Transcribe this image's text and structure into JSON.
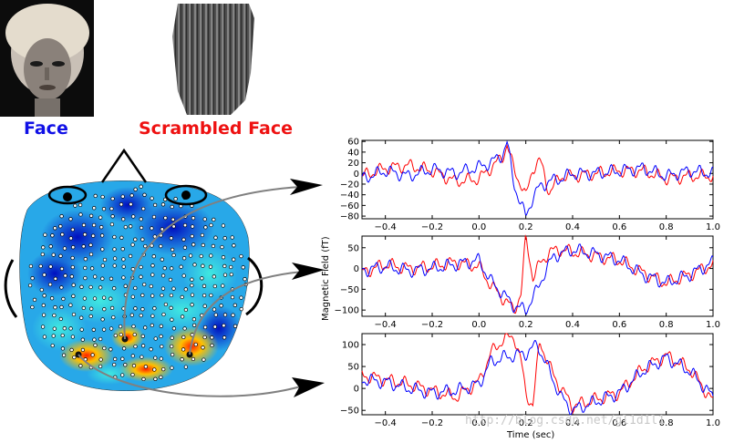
{
  "labels": {
    "face": "Face",
    "scrambled": "Scrambled Face",
    "face_color": "#1010e6",
    "scrambled_color": "#ee1111"
  },
  "images": {
    "face_photo": "face-photo",
    "scrambled_photo": "scrambled-face-photo"
  },
  "head_map": {
    "description_icon": "meg-sensor-head-map"
  },
  "watermark": "http://blog.csdn.net/gl1d1l1",
  "chart_data": {
    "type": "line",
    "xlabel": "Time (sec)",
    "ylabel": "Magnetic Field (fT)",
    "xlim": [
      -0.5,
      1.0
    ],
    "xticks": [
      -0.4,
      -0.2,
      0.0,
      0.2,
      0.4,
      0.6,
      0.8,
      1.0
    ],
    "xtick_labels": [
      "−0.4",
      "−0.2",
      "0.0",
      "0.2",
      "0.4",
      "0.6",
      "0.8",
      "1.0"
    ],
    "series_colors": {
      "face": "#0000ff",
      "scrambled": "#ff0000"
    },
    "panels": [
      {
        "ylim": [
          -85,
          62
        ],
        "yticks": [
          60,
          40,
          20,
          0,
          -20,
          -40,
          -60,
          -80
        ],
        "ytick_labels": [
          "60",
          "40",
          "20",
          "0",
          "−20",
          "−40",
          "−60",
          "−80"
        ],
        "face": {
          "x": [
            -0.5,
            -0.4,
            -0.3,
            -0.2,
            -0.1,
            0.0,
            0.05,
            0.1,
            0.12,
            0.15,
            0.18,
            0.2,
            0.23,
            0.26,
            0.3,
            0.35,
            0.4,
            0.5,
            0.6,
            0.7,
            0.8,
            0.9,
            1.0
          ],
          "y": [
            -10,
            5,
            -5,
            8,
            0,
            12,
            20,
            35,
            58,
            -20,
            -60,
            -80,
            -45,
            -25,
            -15,
            -10,
            0,
            0,
            5,
            10,
            -5,
            5,
            0
          ]
        },
        "scrambled": {
          "x": [
            -0.5,
            -0.4,
            -0.3,
            -0.2,
            -0.1,
            0.0,
            0.05,
            0.1,
            0.12,
            0.15,
            0.18,
            0.2,
            0.23,
            0.26,
            0.3,
            0.35,
            0.4,
            0.5,
            0.6,
            0.7,
            0.8,
            0.9,
            1.0
          ],
          "y": [
            -5,
            10,
            15,
            5,
            -15,
            -10,
            10,
            30,
            55,
            5,
            -20,
            -45,
            10,
            25,
            -35,
            -5,
            -5,
            0,
            5,
            5,
            -10,
            -5,
            -5
          ]
        }
      },
      {
        "ylim": [
          -115,
          78
        ],
        "yticks": [
          50,
          0,
          -50,
          -100
        ],
        "ytick_labels": [
          "50",
          "0",
          "−50",
          "−100"
        ],
        "face": {
          "x": [
            -0.5,
            -0.4,
            -0.3,
            -0.2,
            -0.1,
            0.0,
            0.05,
            0.1,
            0.15,
            0.2,
            0.25,
            0.28,
            0.32,
            0.4,
            0.5,
            0.6,
            0.7,
            0.8,
            0.9,
            1.0
          ],
          "y": [
            -5,
            5,
            -5,
            0,
            10,
            20,
            -30,
            -60,
            -90,
            -100,
            -50,
            -10,
            30,
            45,
            35,
            20,
            -15,
            -35,
            -15,
            15
          ]
        },
        "scrambled": {
          "x": [
            -0.5,
            -0.4,
            -0.3,
            -0.2,
            -0.1,
            0.0,
            0.05,
            0.1,
            0.15,
            0.18,
            0.2,
            0.23,
            0.26,
            0.3,
            0.35,
            0.4,
            0.5,
            0.6,
            0.7,
            0.8,
            0.9,
            1.0
          ],
          "y": [
            -10,
            10,
            0,
            5,
            15,
            5,
            -40,
            -70,
            -100,
            -60,
            75,
            -20,
            10,
            40,
            45,
            40,
            30,
            20,
            -10,
            -35,
            -15,
            10
          ]
        }
      },
      {
        "ylim": [
          -60,
          125
        ],
        "yticks": [
          100,
          50,
          0,
          -50
        ],
        "ytick_labels": [
          "100",
          "50",
          "0",
          "−50"
        ],
        "face": {
          "x": [
            -0.5,
            -0.4,
            -0.3,
            -0.2,
            -0.1,
            0.0,
            0.05,
            0.1,
            0.15,
            0.2,
            0.25,
            0.3,
            0.35,
            0.4,
            0.5,
            0.6,
            0.7,
            0.8,
            0.9,
            1.0
          ],
          "y": [
            20,
            15,
            0,
            -10,
            -5,
            10,
            60,
            70,
            75,
            80,
            100,
            40,
            -20,
            -50,
            -30,
            -10,
            40,
            70,
            40,
            -20
          ]
        },
        "scrambled": {
          "x": [
            -0.5,
            -0.4,
            -0.3,
            -0.2,
            -0.1,
            0.0,
            0.05,
            0.1,
            0.15,
            0.18,
            0.2,
            0.23,
            0.26,
            0.3,
            0.35,
            0.4,
            0.5,
            0.6,
            0.7,
            0.8,
            0.9,
            1.0
          ],
          "y": [
            30,
            20,
            10,
            -5,
            -20,
            15,
            80,
            110,
            120,
            60,
            -10,
            -40,
            110,
            50,
            0,
            -40,
            -25,
            -10,
            45,
            75,
            45,
            -30
          ]
        }
      }
    ]
  }
}
